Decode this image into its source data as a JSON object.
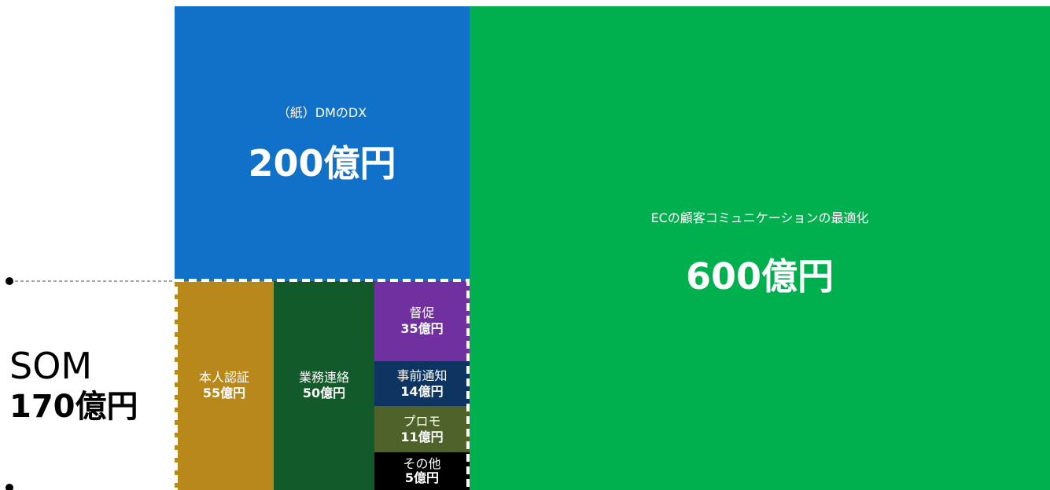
{
  "market": {
    "dm": {
      "label": "（紙）DMのDX",
      "amount": "200億円"
    },
    "ec": {
      "label": "ECの顧客コミュニケーションの最適化",
      "amount": "600億円"
    },
    "som": {
      "label": "SOM",
      "amount": "170億円"
    },
    "segments": [
      {
        "label": "本人認証",
        "amount": "55億円"
      },
      {
        "label": "業務連絡",
        "amount": "50億円"
      },
      {
        "label": "督促",
        "amount": "35億円"
      },
      {
        "label": "事前通知",
        "amount": "14億円"
      },
      {
        "label": "プロモ",
        "amount": "11億円"
      },
      {
        "label": "その他",
        "amount": "5億円"
      }
    ]
  }
}
